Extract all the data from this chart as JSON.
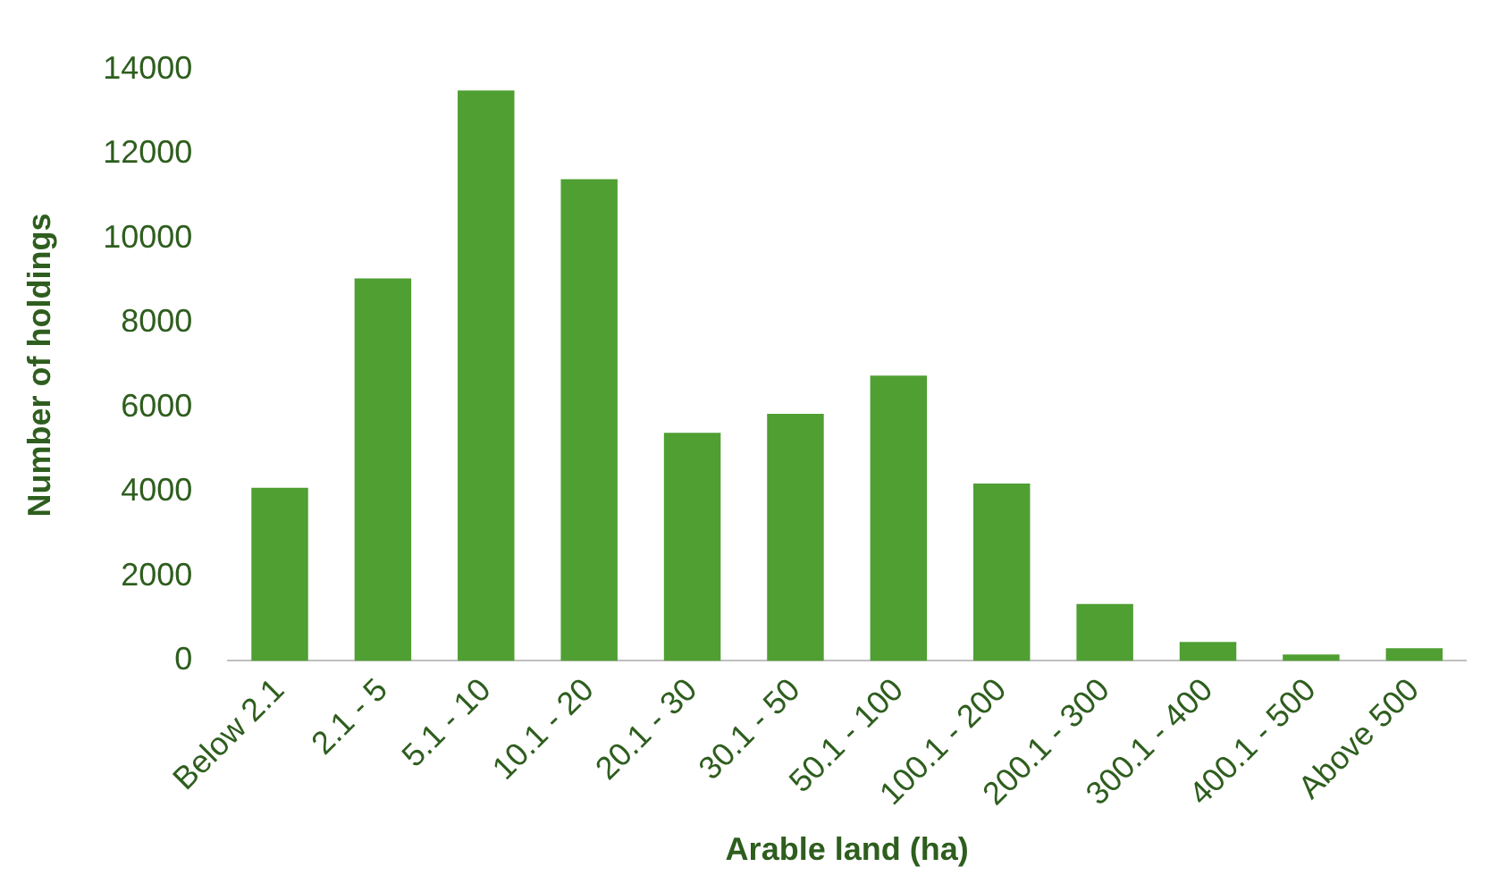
{
  "chart_data": {
    "type": "bar",
    "xlabel": "Arable land (ha)",
    "ylabel": "Number of holdings",
    "categories": [
      "Below 2.1",
      "2.1 - 5",
      "5.1 - 10",
      "10.1 - 20",
      "20.1 - 30",
      "30.1 - 50",
      "50.1 - 100",
      "100.1 - 200",
      "200.1 - 300",
      "300.1 - 400",
      "400.1 - 500",
      "Above 500"
    ],
    "values": [
      4100,
      9050,
      13500,
      11400,
      5400,
      5850,
      6750,
      4200,
      1350,
      450,
      150,
      300
    ],
    "color": "#4f9f32",
    "ylim": [
      0,
      14000
    ],
    "yticks": [
      0,
      2000,
      4000,
      6000,
      8000,
      10000,
      12000,
      14000
    ],
    "grid": false,
    "legend": false
  }
}
